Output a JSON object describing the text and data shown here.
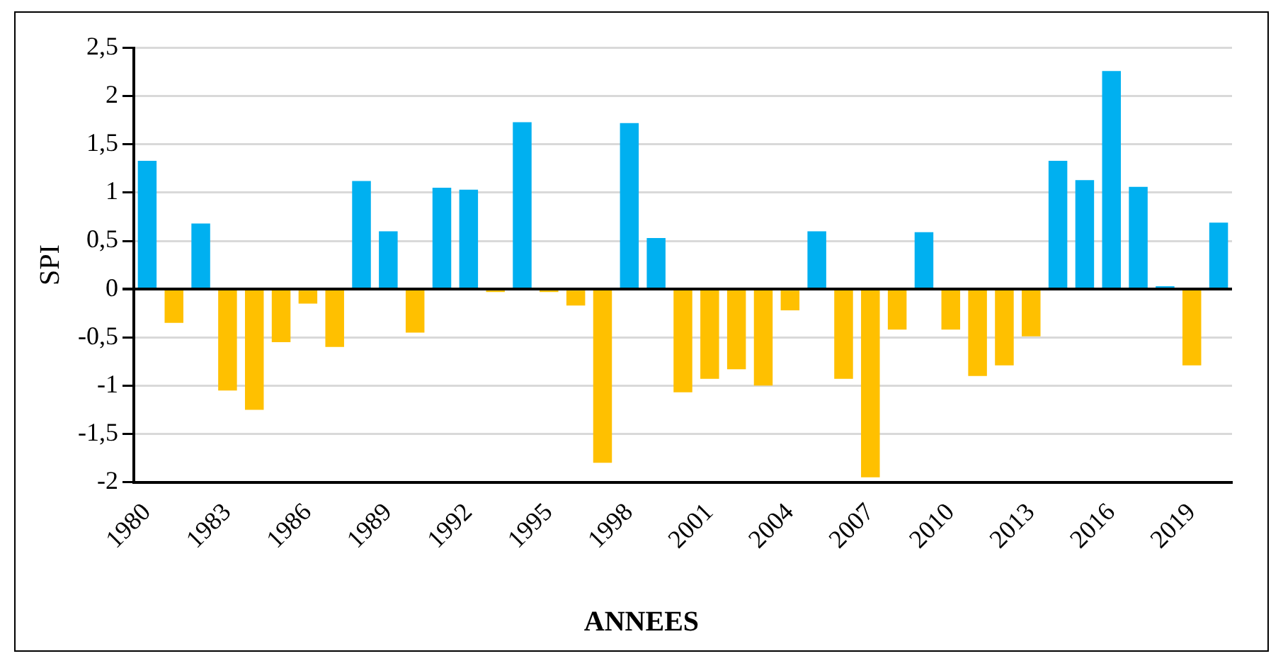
{
  "chart_data": {
    "type": "bar",
    "xlabel": "ANNEES",
    "ylabel": "SPI",
    "categories": [
      "1980",
      null,
      null,
      "1983",
      null,
      null,
      "1986",
      null,
      null,
      "1989",
      null,
      null,
      "1992",
      null,
      null,
      "1995",
      null,
      null,
      "1998",
      null,
      null,
      "2001",
      null,
      null,
      "2004",
      null,
      null,
      "2007",
      null,
      null,
      "2010",
      null,
      null,
      "2013",
      null,
      null,
      "2016",
      null,
      null,
      "2019",
      null
    ],
    "values": [
      1.33,
      -0.35,
      0.68,
      -1.05,
      -1.25,
      -0.55,
      -0.15,
      -0.6,
      1.12,
      0.6,
      -0.45,
      1.05,
      1.03,
      -0.03,
      1.73,
      -0.03,
      -0.17,
      -1.8,
      1.72,
      0.53,
      -1.07,
      -0.93,
      -0.83,
      -1.0,
      -0.22,
      0.6,
      -0.93,
      -1.95,
      -0.42,
      0.59,
      -0.42,
      -0.9,
      -0.79,
      -0.49,
      1.33,
      1.13,
      2.26,
      1.06,
      0.03,
      -0.79,
      0.69
    ],
    "colors": [
      "#00b0f0",
      "#ffc000",
      "#00b0f0",
      "#ffc000",
      "#ffc000",
      "#ffc000",
      "#ffc000",
      "#ffc000",
      "#00b0f0",
      "#00b0f0",
      "#ffc000",
      "#00b0f0",
      "#00b0f0",
      "#ffc000",
      "#00b0f0",
      "#ffc000",
      "#ffc000",
      "#ffc000",
      "#00b0f0",
      "#00b0f0",
      "#ffc000",
      "#ffc000",
      "#ffc000",
      "#ffc000",
      "#ffc000",
      "#00b0f0",
      "#ffc000",
      "#ffc000",
      "#ffc000",
      "#00b0f0",
      "#ffc000",
      "#ffc000",
      "#ffc000",
      "#ffc000",
      "#00b0f0",
      "#00b0f0",
      "#00b0f0",
      "#00b0f0",
      "#00b0f0",
      "#ffc000",
      "#00b0f0"
    ],
    "ylim": [
      -2,
      2.5
    ],
    "yticks": [
      -2,
      {
        "value": -1.5,
        "label": "-1,5"
      },
      -1,
      {
        "value": -0.5,
        "label": "-0,5"
      },
      0,
      {
        "value": 0.5,
        "label": "0,5"
      },
      1,
      {
        "value": 1.5,
        "label": "1,5"
      },
      2,
      {
        "value": 2.5,
        "label": "2,5"
      }
    ],
    "grid": "y"
  }
}
